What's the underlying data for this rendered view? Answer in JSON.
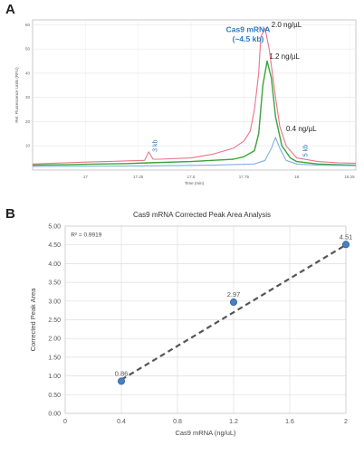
{
  "panel_labels": {
    "a": "A",
    "b": "B"
  },
  "chart_data": [
    {
      "type": "line",
      "title": "",
      "xlabel": "Time (min)",
      "ylabel": "Rel. Fluorescence Units (RFU)",
      "xlim": [
        16.75,
        18.28
      ],
      "ylim": [
        0,
        62
      ],
      "x_ticks": [
        "17",
        "17.25",
        "17.5",
        "17.75",
        "18",
        "18.25"
      ],
      "x_tick_values": [
        17,
        17.25,
        17.5,
        17.75,
        18,
        18.25
      ],
      "y_ticks": [
        "60",
        "50",
        "40",
        "30",
        "20",
        "10"
      ],
      "y_tick_values": [
        60,
        50,
        40,
        30,
        20,
        10
      ],
      "grid": true,
      "annotations": [
        {
          "text": "Cas9 mRNA",
          "x": 17.77,
          "y": 57
        },
        {
          "text": "(~4.5 kb)",
          "x": 17.77,
          "y": 53
        },
        {
          "text": "2.0 ng/µL",
          "x": 17.88,
          "y": 59
        },
        {
          "text": "1.2 ng/µL",
          "x": 17.87,
          "y": 46
        },
        {
          "text": "0.4 ng/µL",
          "x": 17.95,
          "y": 16
        },
        {
          "text": "3 kb",
          "x": 17.34,
          "y": 10
        },
        {
          "text": "5 kb",
          "x": 18.05,
          "y": 8
        }
      ],
      "series": [
        {
          "color": "#e8748a",
          "x": [
            16.75,
            16.9,
            17.0,
            17.1,
            17.2,
            17.28,
            17.3,
            17.32,
            17.35,
            17.5,
            17.6,
            17.7,
            17.75,
            17.78,
            17.8,
            17.82,
            17.83,
            17.85,
            17.87,
            17.9,
            17.92,
            17.95,
            18.0,
            18.1,
            18.2,
            18.28
          ],
          "y": [
            2.5,
            3.0,
            3.3,
            3.5,
            3.8,
            4.0,
            7.5,
            4.5,
            4.5,
            5.0,
            6.5,
            9.0,
            12.0,
            16.0,
            25.0,
            40.0,
            55.0,
            58.5,
            50.0,
            30.0,
            18.0,
            10.0,
            5.0,
            3.5,
            3.0,
            2.8
          ]
        },
        {
          "color": "#3aa33a",
          "x": [
            16.75,
            16.9,
            17.0,
            17.2,
            17.3,
            17.5,
            17.7,
            17.75,
            17.8,
            17.82,
            17.84,
            17.86,
            17.88,
            17.9,
            17.93,
            17.97,
            18.0,
            18.1,
            18.2,
            18.28
          ],
          "y": [
            2.0,
            2.2,
            2.4,
            2.7,
            3.0,
            3.5,
            4.5,
            5.5,
            8.0,
            15.0,
            35.0,
            45.0,
            38.0,
            22.0,
            10.0,
            5.0,
            3.5,
            2.5,
            2.2,
            2.0
          ]
        },
        {
          "color": "#7fb0e0",
          "x": [
            16.75,
            17.0,
            17.3,
            17.6,
            17.8,
            17.85,
            17.88,
            17.9,
            17.92,
            17.95,
            18.0,
            18.1,
            18.28
          ],
          "y": [
            1.5,
            1.6,
            1.7,
            2.0,
            2.5,
            4.0,
            9.0,
            13.5,
            9.0,
            4.0,
            2.5,
            2.0,
            1.8
          ]
        }
      ]
    },
    {
      "type": "scatter",
      "title": "Cas9 mRNA Corrected Peak Area Analysis",
      "xlabel": "Cas9 mRNA (ng/uL)",
      "ylabel": "Corrected Peak Area",
      "xlim": [
        0,
        2
      ],
      "ylim": [
        0,
        5
      ],
      "x_ticks": [
        "0",
        "0.4",
        "0.8",
        "1.2",
        "1.6",
        "2"
      ],
      "x_tick_values": [
        0,
        0.4,
        0.8,
        1.2,
        1.6,
        2
      ],
      "y_ticks": [
        "0.00",
        "0.50",
        "1.00",
        "1.50",
        "2.00",
        "2.50",
        "3.00",
        "3.50",
        "4.00",
        "4.50",
        "5.00"
      ],
      "y_tick_values": [
        0,
        0.5,
        1.0,
        1.5,
        2.0,
        2.5,
        3.0,
        3.5,
        4.0,
        4.5,
        5.0
      ],
      "grid": true,
      "r_squared_label": "R² = 0.9919",
      "trendline": {
        "x": [
          0.4,
          2
        ],
        "y": [
          0.9,
          4.5
        ],
        "color": "#555555",
        "style": "dashed"
      },
      "points": [
        {
          "x": 0.4,
          "y": 0.86,
          "label": "0.86"
        },
        {
          "x": 1.2,
          "y": 2.97,
          "label": "2.97"
        },
        {
          "x": 2.0,
          "y": 4.51,
          "label": "4.51"
        }
      ],
      "point_color": "#4a7fc1"
    }
  ]
}
